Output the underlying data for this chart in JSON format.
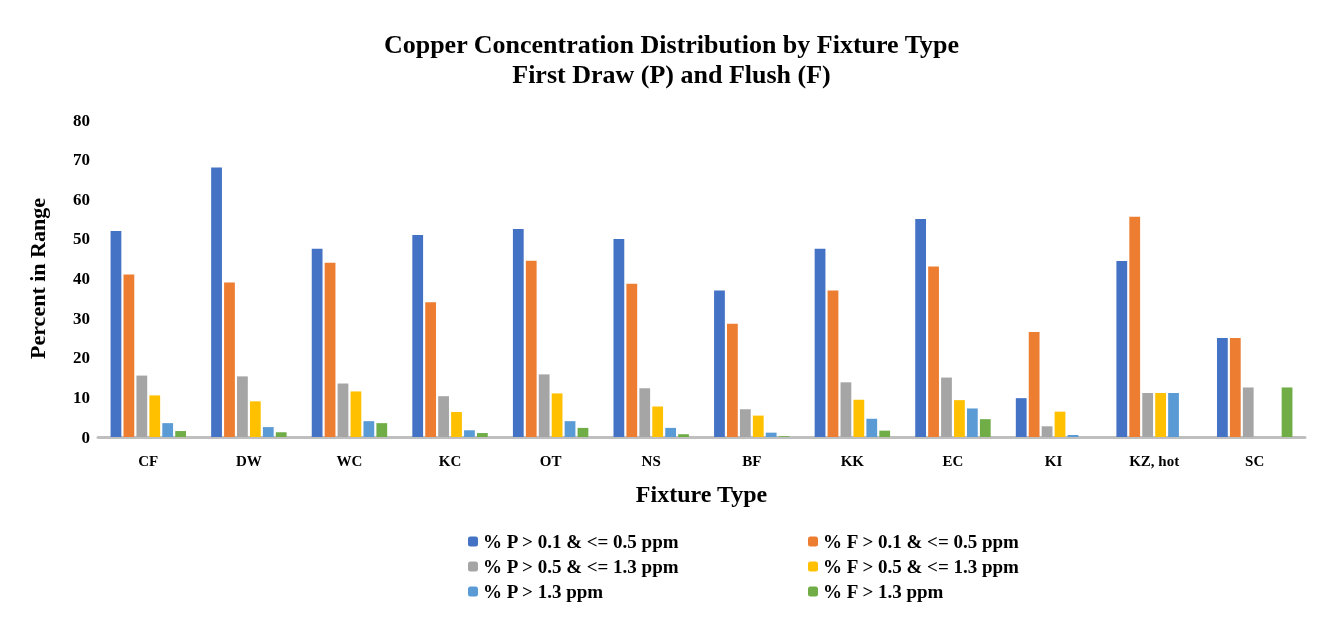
{
  "chart_data": {
    "type": "bar",
    "title": "Copper Concentration Distribution by Fixture Type",
    "subtitle": "First Draw (P) and Flush (F)",
    "xlabel": "Fixture Type",
    "ylabel": "Percent in Range",
    "categories": [
      "CF",
      "DW",
      "WC",
      "KC",
      "OT",
      "NS",
      "BF",
      "KK",
      "EC",
      "KI",
      "KZ, hot",
      "SC"
    ],
    "series": [
      {
        "name": "% P > 0.1 & <= 0.5 ppm",
        "color": "#4472c4",
        "values": [
          52,
          68,
          47.5,
          51,
          52.5,
          50,
          37,
          47.5,
          55,
          9.8,
          44.4,
          25
        ]
      },
      {
        "name": "% F > 0.1 & <= 0.5 ppm",
        "color": "#ed7d31",
        "values": [
          41,
          39,
          44,
          34,
          44.5,
          38.7,
          28.6,
          37,
          43,
          26.5,
          55.6,
          25
        ]
      },
      {
        "name": "% P > 0.5 & <= 1.3 ppm",
        "color": "#a5a5a5",
        "values": [
          15.5,
          15.3,
          13.5,
          10.3,
          15.8,
          12.3,
          7,
          13.8,
          15,
          2.7,
          11.1,
          12.5
        ]
      },
      {
        "name": "% F > 0.5 & <= 1.3 ppm",
        "color": "#ffc000",
        "values": [
          10.5,
          9,
          11.5,
          6.3,
          11,
          7.7,
          5.4,
          9.4,
          9.3,
          6.4,
          11.1,
          0
        ]
      },
      {
        "name": "% P > 1.3 ppm",
        "color": "#5b9bd5",
        "values": [
          3.5,
          2.5,
          4,
          1.7,
          4,
          2.3,
          1.1,
          4.6,
          7.2,
          0.5,
          11.1,
          0
        ]
      },
      {
        "name": "% F > 1.3 ppm",
        "color": "#70ad47",
        "values": [
          1.5,
          1.2,
          3.5,
          1,
          2.3,
          0.7,
          0.2,
          1.6,
          4.5,
          0,
          0,
          12.5
        ]
      }
    ],
    "ylim": [
      0,
      80
    ],
    "yticks": [
      0,
      10,
      20,
      30,
      40,
      50,
      60,
      70,
      80
    ],
    "grid": false,
    "legend": "bottom"
  }
}
